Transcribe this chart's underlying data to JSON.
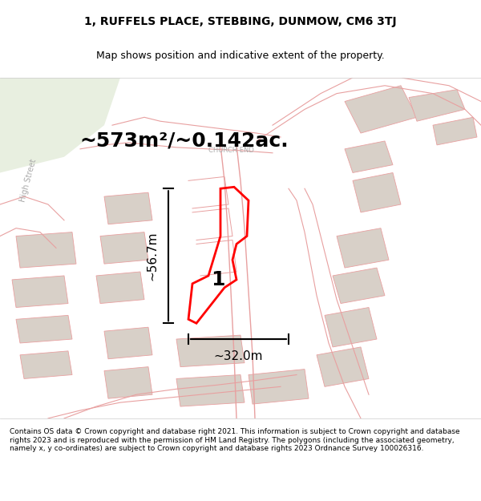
{
  "title_line1": "1, RUFFELS PLACE, STEBBING, DUNMOW, CM6 3TJ",
  "title_line2": "Map shows position and indicative extent of the property.",
  "area_text": "~573m²/~0.142ac.",
  "width_label": "~32.0m",
  "height_label": "~56.7m",
  "plot_number": "1",
  "church_end_label": "CHURCH END",
  "high_street_label": "High Street",
  "footer_text": "Contains OS data © Crown copyright and database right 2021. This information is subject to Crown copyright and database rights 2023 and is reproduced with the permission of HM Land Registry. The polygons (including the associated geometry, namely x, y co-ordinates) are subject to Crown copyright and database rights 2023 Ordnance Survey 100026316.",
  "bg_color": "#f0ede8",
  "map_bg": "#f5f2ee",
  "green_bg": "#e8efe0",
  "road_color": "#ffffff",
  "outline_color": "#e8a0a0",
  "plot_color": "#ff0000",
  "building_color": "#d8d0c8",
  "footer_bg": "#ffffff",
  "title_fontsize": 10,
  "area_fontsize": 18,
  "dim_fontsize": 11
}
